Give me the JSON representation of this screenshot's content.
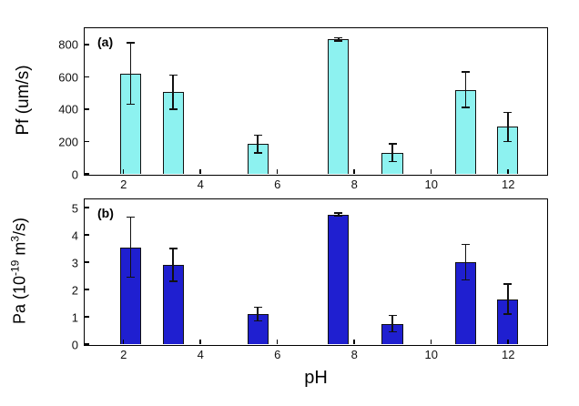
{
  "figure": {
    "xlabel": "pH",
    "panel_a_tag": "(a)",
    "panel_b_tag": "(b)",
    "ylabel_a": "Pf (um/s)",
    "ylabel_b": {
      "base1": "Pa (10",
      "sup1": "-19",
      "base2": " m",
      "sup2": "3",
      "base3": "/s)"
    }
  },
  "chart_data": [
    {
      "type": "bar",
      "panel": "a",
      "title": "",
      "xlabel": "pH",
      "ylabel": "Pf (um/s)",
      "x": [
        2.2,
        3.3,
        5.5,
        7.6,
        9.0,
        10.9,
        12.0
      ],
      "values": [
        620,
        505,
        185,
        830,
        130,
        520,
        290
      ],
      "errors": [
        190,
        105,
        55,
        10,
        55,
        110,
        90
      ],
      "xlim": [
        1,
        13
      ],
      "ylim": [
        0,
        900
      ],
      "xticks": [
        2,
        4,
        6,
        8,
        10,
        12
      ],
      "yticks": [
        0,
        200,
        400,
        600,
        800
      ],
      "bar_width": 0.55,
      "bar_color": "#8df2f0",
      "bar_edge": "#111111",
      "error_color": "#111111",
      "grid": false,
      "legend": "none"
    },
    {
      "type": "bar",
      "panel": "b",
      "title": "",
      "xlabel": "pH",
      "ylabel": "Pa (10^-19 m^3/s)",
      "x": [
        2.2,
        3.3,
        5.5,
        7.6,
        9.0,
        10.9,
        12.0
      ],
      "values": [
        3.55,
        2.9,
        1.1,
        4.75,
        0.75,
        3.0,
        1.65
      ],
      "errors": [
        1.1,
        0.6,
        0.25,
        0.05,
        0.3,
        0.65,
        0.55
      ],
      "xlim": [
        1,
        13
      ],
      "ylim": [
        0,
        5.3
      ],
      "xticks": [
        2,
        4,
        6,
        8,
        10,
        12
      ],
      "yticks": [
        0,
        1,
        2,
        3,
        4,
        5
      ],
      "bar_width": 0.55,
      "bar_color": "#1f1fd0",
      "bar_edge": "#111111",
      "error_color": "#111111",
      "grid": false,
      "legend": "none"
    }
  ]
}
